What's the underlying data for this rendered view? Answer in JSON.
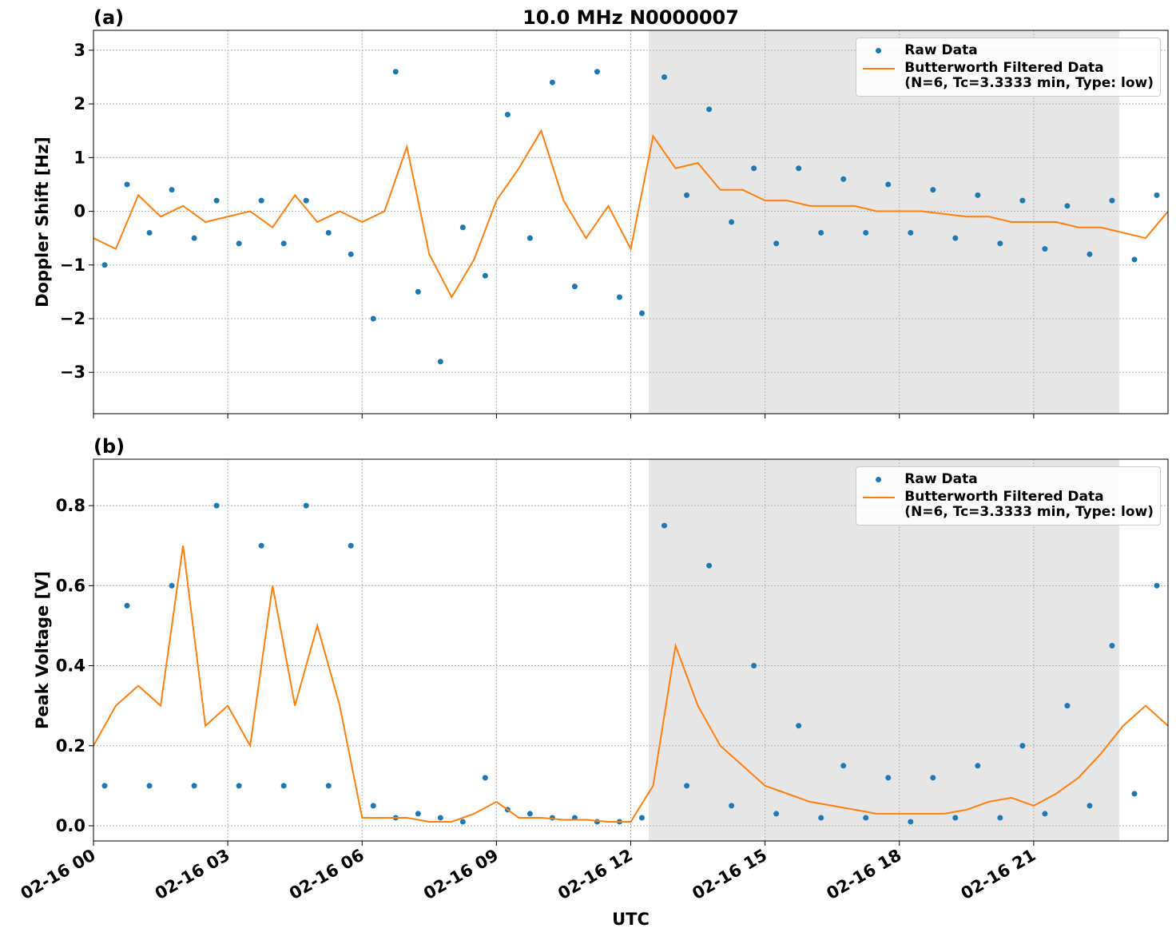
{
  "chart_data": [
    {
      "type": "line",
      "title": "10.0 MHz N0000007",
      "panel_label": "(a)",
      "ylabel": "Doppler Shift [Hz]",
      "xlim": [
        0,
        24
      ],
      "xticks": [
        0,
        3,
        6,
        9,
        12,
        15,
        18,
        21
      ],
      "ylim": [
        -3.77,
        3.37
      ],
      "yticks": [
        {
          "value": -3,
          "label": "−3"
        },
        {
          "value": -2,
          "label": "−2"
        },
        {
          "value": -1,
          "label": "−1"
        },
        0,
        1,
        2,
        3
      ],
      "grid": true,
      "shaded_span": [
        12.4,
        22.91
      ],
      "legend": "upper right",
      "series": [
        {
          "name": "Raw Data",
          "kind": "scatter",
          "color": "#1f77b4",
          "x": [
            0.25,
            0.75,
            1.25,
            1.75,
            2.25,
            2.75,
            3.25,
            3.75,
            4.25,
            4.75,
            5.25,
            5.75,
            6.25,
            6.75,
            7.25,
            7.75,
            8.25,
            8.75,
            9.25,
            9.75,
            10.25,
            10.75,
            11.25,
            11.75,
            12.25,
            12.75,
            13.25,
            13.75,
            14.25,
            14.75,
            15.25,
            15.75,
            16.25,
            16.75,
            17.25,
            17.75,
            18.25,
            18.75,
            19.25,
            19.75,
            20.25,
            20.75,
            21.25,
            21.75,
            22.25,
            22.75,
            23.25,
            23.75
          ],
          "values": [
            -1.0,
            0.5,
            -0.4,
            0.4,
            -0.5,
            0.2,
            -0.6,
            0.2,
            -0.6,
            0.2,
            -0.4,
            -0.8,
            -2.0,
            2.6,
            -1.5,
            -2.8,
            -0.3,
            -1.2,
            1.8,
            -0.5,
            2.4,
            -1.4,
            2.6,
            -1.6,
            -1.9,
            2.5,
            0.3,
            1.9,
            -0.2,
            0.8,
            -0.6,
            0.8,
            -0.4,
            0.6,
            -0.4,
            0.5,
            -0.4,
            0.4,
            -0.5,
            0.3,
            -0.6,
            0.2,
            -0.7,
            0.1,
            -0.8,
            0.2,
            -0.9,
            0.3
          ]
        },
        {
          "name": "Butterworth Filtered Data\n(N=6, Tc=3.3333 min, Type: low)",
          "kind": "line",
          "color": "#ff7f0e",
          "x": [
            0,
            0.5,
            1,
            1.5,
            2,
            2.5,
            3,
            3.5,
            4,
            4.5,
            5,
            5.5,
            6,
            6.5,
            7,
            7.5,
            8,
            8.5,
            9,
            9.5,
            10,
            10.5,
            11,
            11.5,
            12,
            12.5,
            13,
            13.5,
            14,
            14.5,
            15,
            15.5,
            16,
            16.5,
            17,
            17.5,
            18,
            18.5,
            19,
            19.5,
            20,
            20.5,
            21,
            21.5,
            22,
            22.5,
            23,
            23.5,
            24
          ],
          "values": [
            -0.5,
            -0.7,
            0.3,
            -0.1,
            0.1,
            -0.2,
            -0.1,
            0.0,
            -0.3,
            0.3,
            -0.2,
            0.0,
            -0.2,
            0.0,
            1.2,
            -0.8,
            -1.6,
            -0.9,
            0.2,
            0.8,
            1.5,
            0.2,
            -0.5,
            0.1,
            -0.7,
            1.4,
            0.8,
            0.9,
            0.4,
            0.4,
            0.2,
            0.2,
            0.1,
            0.1,
            0.1,
            0.0,
            0.0,
            0.0,
            -0.05,
            -0.1,
            -0.1,
            -0.2,
            -0.2,
            -0.2,
            -0.3,
            -0.3,
            -0.4,
            -0.5,
            0.0
          ]
        }
      ]
    },
    {
      "type": "line",
      "panel_label": "(b)",
      "ylabel": "Peak Voltage [V]",
      "xlabel": "UTC",
      "xlim": [
        0,
        24
      ],
      "xticks": [
        {
          "value": 0,
          "label": "02-16 00"
        },
        {
          "value": 3,
          "label": "02-16 03"
        },
        {
          "value": 6,
          "label": "02-16 06"
        },
        {
          "value": 9,
          "label": "02-16 09"
        },
        {
          "value": 12,
          "label": "02-16 12"
        },
        {
          "value": 15,
          "label": "02-16 15"
        },
        {
          "value": 18,
          "label": "02-16 18"
        },
        {
          "value": 21,
          "label": "02-16 21"
        }
      ],
      "ylim": [
        -0.038,
        0.916
      ],
      "yticks": [
        {
          "value": 0,
          "label": "0.0"
        },
        0.2,
        0.4,
        0.6,
        0.8
      ],
      "grid": true,
      "shaded_span": [
        12.4,
        22.91
      ],
      "legend": "upper right",
      "series": [
        {
          "name": "Raw Data",
          "kind": "scatter",
          "color": "#1f77b4",
          "x": [
            0.25,
            0.75,
            1.25,
            1.75,
            2.25,
            2.75,
            3.25,
            3.75,
            4.25,
            4.75,
            5.25,
            5.75,
            6.25,
            6.75,
            7.25,
            7.75,
            8.25,
            8.75,
            9.25,
            9.75,
            10.25,
            10.75,
            11.25,
            11.75,
            12.25,
            12.75,
            13.25,
            13.75,
            14.25,
            14.75,
            15.25,
            15.75,
            16.25,
            16.75,
            17.25,
            17.75,
            18.25,
            18.75,
            19.25,
            19.75,
            20.25,
            20.75,
            21.25,
            21.75,
            22.25,
            22.75,
            23.25,
            23.75
          ],
          "values": [
            0.1,
            0.55,
            0.1,
            0.6,
            0.1,
            0.8,
            0.1,
            0.7,
            0.1,
            0.8,
            0.1,
            0.7,
            0.05,
            0.02,
            0.03,
            0.02,
            0.01,
            0.12,
            0.04,
            0.03,
            0.02,
            0.02,
            0.01,
            0.01,
            0.02,
            0.75,
            0.1,
            0.65,
            0.05,
            0.4,
            0.03,
            0.25,
            0.02,
            0.15,
            0.02,
            0.12,
            0.01,
            0.12,
            0.02,
            0.15,
            0.02,
            0.2,
            0.03,
            0.3,
            0.05,
            0.45,
            0.08,
            0.6
          ]
        },
        {
          "name": "Butterworth Filtered Data\n(N=6, Tc=3.3333 min, Type: low)",
          "kind": "line",
          "color": "#ff7f0e",
          "x": [
            0,
            0.5,
            1,
            1.5,
            2,
            2.5,
            3,
            3.5,
            4,
            4.5,
            5,
            5.5,
            6,
            6.5,
            7,
            7.5,
            8,
            8.5,
            9,
            9.5,
            10,
            10.5,
            11,
            11.5,
            12,
            12.5,
            13,
            13.5,
            14,
            14.5,
            15,
            15.5,
            16,
            16.5,
            17,
            17.5,
            18,
            18.5,
            19,
            19.5,
            20,
            20.5,
            21,
            21.5,
            22,
            22.5,
            23,
            23.5,
            24
          ],
          "values": [
            0.2,
            0.3,
            0.35,
            0.3,
            0.7,
            0.25,
            0.3,
            0.2,
            0.6,
            0.3,
            0.5,
            0.3,
            0.02,
            0.02,
            0.02,
            0.01,
            0.01,
            0.03,
            0.06,
            0.02,
            0.02,
            0.015,
            0.015,
            0.01,
            0.01,
            0.1,
            0.45,
            0.3,
            0.2,
            0.15,
            0.1,
            0.08,
            0.06,
            0.05,
            0.04,
            0.03,
            0.03,
            0.03,
            0.03,
            0.04,
            0.06,
            0.07,
            0.05,
            0.08,
            0.12,
            0.18,
            0.25,
            0.3,
            0.25
          ]
        }
      ]
    }
  ]
}
